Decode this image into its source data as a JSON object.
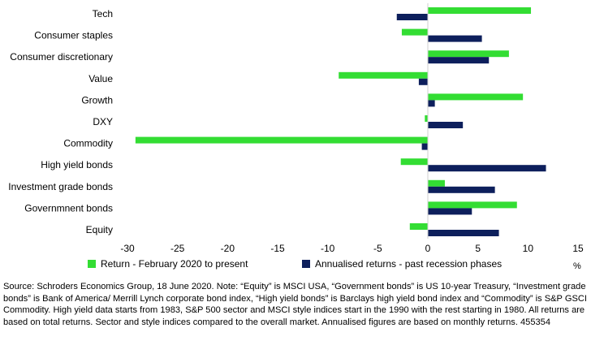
{
  "chart_data": {
    "type": "bar",
    "orientation": "horizontal",
    "categories": [
      "Tech",
      "Consumer staples",
      "Consumer discretionary",
      "Value",
      "Growth",
      "DXY",
      "Commodity",
      "High yield bonds",
      "Investment grade bonds",
      "Governmnent bonds",
      "Equity"
    ],
    "series": [
      {
        "name": "Return - February 2020 to present",
        "color": "#33dd33",
        "values": [
          10.3,
          -2.6,
          8.1,
          -8.9,
          9.5,
          -0.3,
          -29.2,
          -2.7,
          1.7,
          8.9,
          -1.8
        ]
      },
      {
        "name": "Annualised returns - past recession phases",
        "color": "#0d1f5c",
        "values": [
          -3.1,
          5.4,
          6.1,
          -0.9,
          0.7,
          3.5,
          -0.6,
          11.8,
          6.7,
          4.4,
          7.1
        ]
      }
    ],
    "xlim": [
      -30,
      15
    ],
    "xticks": [
      "-30",
      "-25",
      "-20",
      "-15",
      "-10",
      "-5",
      "0",
      "5",
      "10",
      "15"
    ],
    "legend_position": "bottom"
  },
  "axis_unit": "%",
  "source_note": "Source: Schroders Economics Group, 18 June 2020. Note: “Equity” is MSCI USA, “Government bonds” is US 10-year Treasury, “Investment grade bonds” is Bank of America/ Merrill Lynch corporate bond index, “High yield bonds” is Barclays high yield bond index and “Commodity” is S&P GSCI Commodity. High yield data starts from 1983, S&P 500 sector and MSCI style indices start in the 1990 with the rest starting in 1980. All returns are based on total returns. Sector and style indices compared to the overall market. Annualised figures are based on monthly returns. 455354"
}
